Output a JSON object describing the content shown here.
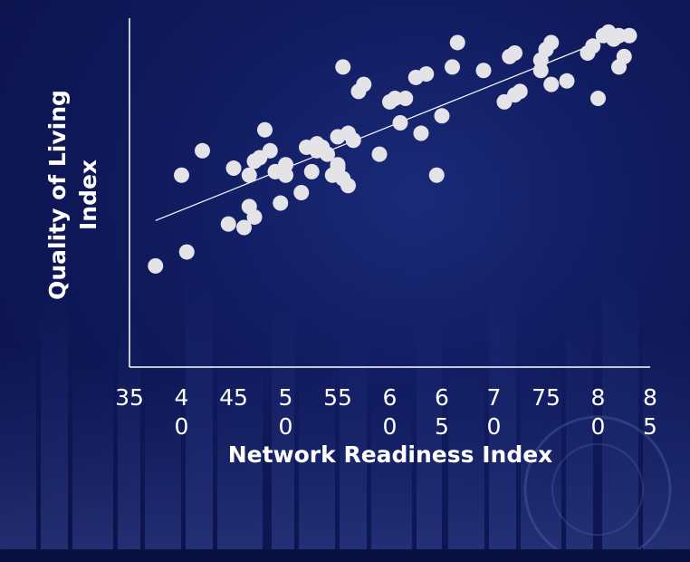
{
  "chart_data": {
    "type": "scatter",
    "title": "",
    "xlabel": "Network Readiness Index",
    "ylabel_lines": [
      "Quality of Living",
      "Index"
    ],
    "x_ticks": [
      {
        "value": 35,
        "lines": [
          "35"
        ]
      },
      {
        "value": 40,
        "lines": [
          "4",
          "0"
        ]
      },
      {
        "value": 45,
        "lines": [
          "45"
        ]
      },
      {
        "value": 50,
        "lines": [
          "5",
          "0"
        ]
      },
      {
        "value": 55,
        "lines": [
          "55"
        ]
      },
      {
        "value": 60,
        "lines": [
          "6",
          "0"
        ]
      },
      {
        "value": 65,
        "lines": [
          "6",
          "5"
        ]
      },
      {
        "value": 70,
        "lines": [
          "7",
          "0"
        ]
      },
      {
        "value": 75,
        "lines": [
          "75"
        ]
      },
      {
        "value": 80,
        "lines": [
          "8",
          "0"
        ]
      },
      {
        "value": 85,
        "lines": [
          "8",
          "5"
        ]
      }
    ],
    "xlim": [
      35,
      85
    ],
    "ylim": [
      0,
      100
    ],
    "y_ticks_shown": false,
    "grid": false,
    "legend": "none",
    "marker_color": "#e4e4e8",
    "trendline": {
      "x": [
        37.5,
        82.5
      ],
      "y": [
        42,
        96
      ]
    },
    "points": [
      {
        "x": 37.5,
        "y": 29
      },
      {
        "x": 40,
        "y": 55
      },
      {
        "x": 40.5,
        "y": 33
      },
      {
        "x": 42,
        "y": 62
      },
      {
        "x": 44.5,
        "y": 41
      },
      {
        "x": 45,
        "y": 57
      },
      {
        "x": 46,
        "y": 40
      },
      {
        "x": 46.5,
        "y": 55
      },
      {
        "x": 46.5,
        "y": 46
      },
      {
        "x": 47,
        "y": 43
      },
      {
        "x": 47,
        "y": 59
      },
      {
        "x": 47.5,
        "y": 60
      },
      {
        "x": 48,
        "y": 68
      },
      {
        "x": 48.5,
        "y": 62
      },
      {
        "x": 49,
        "y": 56
      },
      {
        "x": 49.5,
        "y": 47
      },
      {
        "x": 50,
        "y": 55
      },
      {
        "x": 50,
        "y": 58
      },
      {
        "x": 51.5,
        "y": 50
      },
      {
        "x": 52,
        "y": 63
      },
      {
        "x": 52.5,
        "y": 56
      },
      {
        "x": 53,
        "y": 62
      },
      {
        "x": 53,
        "y": 64
      },
      {
        "x": 53.5,
        "y": 63
      },
      {
        "x": 54,
        "y": 61
      },
      {
        "x": 54.5,
        "y": 55
      },
      {
        "x": 55,
        "y": 57
      },
      {
        "x": 55,
        "y": 58
      },
      {
        "x": 55,
        "y": 66
      },
      {
        "x": 55.5,
        "y": 54
      },
      {
        "x": 55.5,
        "y": 86
      },
      {
        "x": 56,
        "y": 67
      },
      {
        "x": 56,
        "y": 52
      },
      {
        "x": 56.5,
        "y": 65
      },
      {
        "x": 57,
        "y": 79
      },
      {
        "x": 57.5,
        "y": 81
      },
      {
        "x": 59,
        "y": 61
      },
      {
        "x": 60,
        "y": 76
      },
      {
        "x": 60.5,
        "y": 77
      },
      {
        "x": 61,
        "y": 70
      },
      {
        "x": 61.5,
        "y": 77
      },
      {
        "x": 62.5,
        "y": 83
      },
      {
        "x": 63,
        "y": 67
      },
      {
        "x": 63.5,
        "y": 84
      },
      {
        "x": 64.5,
        "y": 55
      },
      {
        "x": 65,
        "y": 72
      },
      {
        "x": 66,
        "y": 86
      },
      {
        "x": 66.5,
        "y": 93
      },
      {
        "x": 69,
        "y": 85
      },
      {
        "x": 71,
        "y": 76
      },
      {
        "x": 71.5,
        "y": 89
      },
      {
        "x": 72,
        "y": 90
      },
      {
        "x": 72,
        "y": 78
      },
      {
        "x": 72.5,
        "y": 79
      },
      {
        "x": 74.5,
        "y": 85
      },
      {
        "x": 74.5,
        "y": 88
      },
      {
        "x": 75,
        "y": 91
      },
      {
        "x": 75.5,
        "y": 93
      },
      {
        "x": 75.5,
        "y": 81
      },
      {
        "x": 77,
        "y": 82
      },
      {
        "x": 79,
        "y": 90
      },
      {
        "x": 79.5,
        "y": 92
      },
      {
        "x": 80,
        "y": 77
      },
      {
        "x": 80.5,
        "y": 95
      },
      {
        "x": 81,
        "y": 96
      },
      {
        "x": 81.5,
        "y": 94
      },
      {
        "x": 82,
        "y": 86
      },
      {
        "x": 82,
        "y": 95
      },
      {
        "x": 82.5,
        "y": 89
      },
      {
        "x": 83,
        "y": 95
      }
    ]
  }
}
